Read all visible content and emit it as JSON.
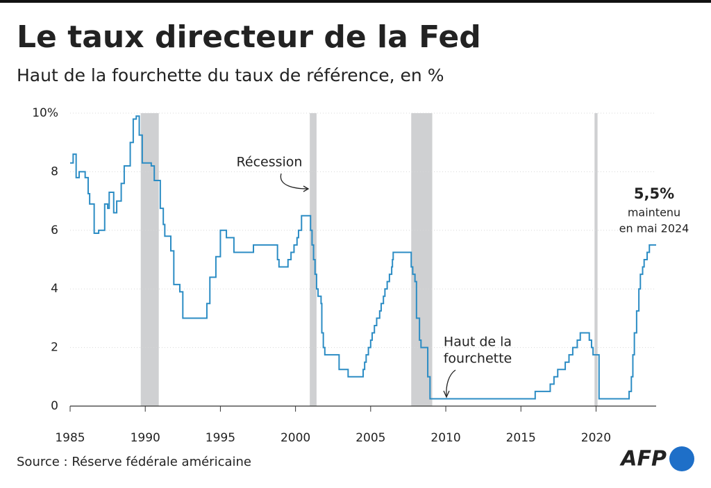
{
  "chart_data": {
    "type": "line",
    "title": "Le taux directeur de la Fed",
    "subtitle": "Haut de la fourchette du taux de référence, en %",
    "source": "Source : Réserve fédérale américaine",
    "logo": "AFP",
    "annotations": {
      "recession": "Récession",
      "range": [
        "Haut de la",
        "fourchette"
      ],
      "last_value": "5,5%",
      "note": [
        "maintenu",
        "en mai 2024"
      ]
    },
    "xlim": [
      1985,
      2024
    ],
    "ylim": [
      0,
      10
    ],
    "xticks": [
      1985,
      1990,
      1995,
      2000,
      2005,
      2010,
      2015,
      2020
    ],
    "yticks": [
      0,
      2,
      4,
      6,
      8,
      {
        "value": 10,
        "label": "10%"
      }
    ],
    "grid": true,
    "recession_color": "#cfd0d2",
    "recessions": [
      [
        1989.7,
        1990.9
      ],
      [
        2000.95,
        2001.4
      ],
      [
        2007.7,
        2009.1
      ],
      [
        2019.9,
        2020.1
      ]
    ],
    "series": [
      {
        "name": "Haut de la fourchette",
        "color": "#2b8cc4",
        "x": [
          1985.0,
          1985.2,
          1985.4,
          1985.6,
          1986.0,
          1986.2,
          1986.3,
          1986.6,
          1986.9,
          1987.3,
          1987.5,
          1987.6,
          1987.9,
          1988.1,
          1988.4,
          1988.6,
          1989.0,
          1989.2,
          1989.4,
          1989.6,
          1989.8,
          1990.4,
          1990.6,
          1991.0,
          1991.2,
          1991.3,
          1991.7,
          1991.9,
          1992.3,
          1992.5,
          1994.1,
          1994.3,
          1994.7,
          1995.0,
          1995.4,
          1995.9,
          1997.2,
          1998.8,
          1998.9,
          1999.5,
          1999.7,
          1999.9,
          2000.1,
          2000.2,
          2000.4,
          2001.0,
          2001.1,
          2001.2,
          2001.3,
          2001.4,
          2001.5,
          2001.7,
          2001.75,
          2001.85,
          2001.95,
          2002.9,
          2003.5,
          2004.5,
          2004.6,
          2004.7,
          2004.85,
          2005.0,
          2005.1,
          2005.25,
          2005.4,
          2005.6,
          2005.7,
          2005.85,
          2005.95,
          2006.1,
          2006.25,
          2006.4,
          2006.45,
          2006.5,
          2007.7,
          2007.8,
          2007.95,
          2008.05,
          2008.25,
          2008.35,
          2008.8,
          2008.95,
          2015.95,
          2016.95,
          2017.2,
          2017.45,
          2017.95,
          2018.2,
          2018.45,
          2018.75,
          2018.95,
          2019.55,
          2019.7,
          2019.8,
          2020.2,
          2022.2,
          2022.35,
          2022.45,
          2022.55,
          2022.7,
          2022.85,
          2022.95,
          2023.1,
          2023.2,
          2023.4,
          2023.55,
          2024.0
        ],
        "values": [
          8.3,
          8.6,
          7.8,
          8.0,
          7.8,
          7.25,
          6.9,
          5.9,
          6.0,
          6.9,
          6.75,
          7.3,
          6.6,
          7.0,
          7.6,
          8.2,
          9.0,
          9.8,
          9.9,
          9.25,
          8.3,
          8.2,
          7.7,
          6.75,
          6.2,
          5.8,
          5.3,
          4.15,
          3.9,
          3.0,
          3.5,
          4.4,
          5.1,
          6.0,
          5.75,
          5.25,
          5.5,
          5.0,
          4.75,
          5.0,
          5.25,
          5.5,
          5.75,
          6.0,
          6.5,
          6.0,
          5.5,
          5.0,
          4.5,
          4.0,
          3.75,
          3.5,
          2.5,
          2.0,
          1.75,
          1.25,
          1.0,
          1.25,
          1.5,
          1.75,
          2.0,
          2.25,
          2.5,
          2.75,
          3.0,
          3.25,
          3.5,
          3.75,
          4.0,
          4.25,
          4.5,
          4.75,
          5.0,
          5.25,
          4.75,
          4.5,
          4.25,
          3.0,
          2.25,
          2.0,
          1.0,
          0.25,
          0.5,
          0.75,
          1.0,
          1.25,
          1.5,
          1.75,
          2.0,
          2.25,
          2.5,
          2.25,
          2.0,
          1.75,
          0.25,
          0.5,
          1.0,
          1.75,
          2.5,
          3.25,
          4.0,
          4.5,
          4.75,
          5.0,
          5.25,
          5.5,
          5.5
        ]
      }
    ]
  }
}
